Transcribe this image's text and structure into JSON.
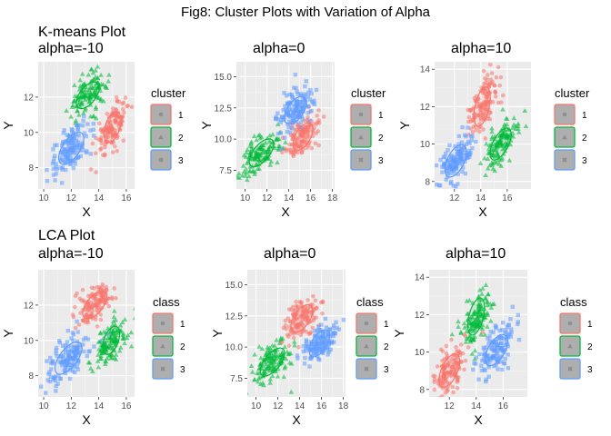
{
  "title": "Fig8: Cluster Plots with Variation of Alpha",
  "colors": {
    "red": "#F8766D",
    "green": "#00BA38",
    "blue": "#619CFF",
    "panel_bg": "#EBEBEB",
    "grid_major": "#FFFFFF"
  },
  "chart_data": [
    {
      "type": "scatter",
      "title": "K-means Plot\nalpha=-10",
      "xlabel": "X",
      "ylabel": "Y",
      "xlim": [
        9.6,
        16.6
      ],
      "ylim": [
        6.8,
        14.0
      ],
      "xticks": [
        10,
        12,
        14,
        16
      ],
      "yticks": [
        8,
        10,
        12
      ],
      "legend": {
        "title": "cluster",
        "entries": [
          "1",
          "2",
          "3"
        ],
        "position": "right"
      },
      "grid": true,
      "series": [
        {
          "name": "1",
          "shape": "circle",
          "color": "#F8766D",
          "center": [
            15.0,
            10.3
          ],
          "sd": [
            0.6,
            0.75
          ],
          "corr": 0.6,
          "ellipse_angle": 65,
          "ellipse_axes": [
            1.7,
            0.95
          ]
        },
        {
          "name": "2",
          "shape": "triangle",
          "color": "#00BA38",
          "center": [
            13.2,
            12.1
          ],
          "sd": [
            0.7,
            0.65
          ],
          "corr": 0.6,
          "ellipse_angle": 40,
          "ellipse_axes": [
            1.8,
            0.95
          ]
        },
        {
          "name": "3",
          "shape": "square",
          "color": "#619CFF",
          "center": [
            12.0,
            9.1
          ],
          "sd": [
            0.75,
            0.75
          ],
          "corr": 0.6,
          "ellipse_angle": 45,
          "ellipse_axes": [
            2.1,
            1.05
          ]
        }
      ]
    },
    {
      "type": "scatter",
      "title": "alpha=0",
      "xlabel": "X",
      "ylabel": "Y",
      "xlim": [
        9.2,
        18.2
      ],
      "ylim": [
        6.0,
        16.2
      ],
      "xticks": [
        10,
        12,
        14,
        16,
        18
      ],
      "yticks": [
        7.5,
        10.0,
        12.5,
        15.0
      ],
      "legend": {
        "title": "cluster",
        "entries": [
          "1",
          "2",
          "3"
        ],
        "position": "right"
      },
      "grid": true,
      "series": [
        {
          "name": "1",
          "shape": "circle",
          "color": "#F8766D",
          "center": [
            15.3,
            10.2
          ],
          "sd": [
            0.8,
            0.9
          ],
          "corr": 0.5,
          "ellipse_angle": 55,
          "ellipse_axes": [
            2.3,
            1.2
          ]
        },
        {
          "name": "2",
          "shape": "triangle",
          "color": "#00BA38",
          "center": [
            11.5,
            8.9
          ],
          "sd": [
            0.9,
            0.9
          ],
          "corr": 0.55,
          "ellipse_angle": 45,
          "ellipse_axes": [
            2.6,
            1.25
          ]
        },
        {
          "name": "3",
          "shape": "square",
          "color": "#619CFF",
          "center": [
            14.6,
            12.3
          ],
          "sd": [
            0.8,
            1.0
          ],
          "corr": 0.45,
          "ellipse_angle": 50,
          "ellipse_axes": [
            2.4,
            1.3
          ]
        }
      ]
    },
    {
      "type": "scatter",
      "title": "alpha=10",
      "xlabel": "X",
      "ylabel": "Y",
      "xlim": [
        10.5,
        17.8
      ],
      "ylim": [
        7.6,
        14.4
      ],
      "xticks": [
        12,
        14,
        16
      ],
      "yticks": [
        8,
        10,
        12,
        14
      ],
      "legend": {
        "title": "cluster",
        "entries": [
          "1",
          "2",
          "3"
        ],
        "position": "right"
      },
      "grid": true,
      "series": [
        {
          "name": "1",
          "shape": "circle",
          "color": "#F8766D",
          "center": [
            14.1,
            12.0
          ],
          "sd": [
            0.55,
            0.8
          ],
          "corr": 0.55,
          "ellipse_angle": 70,
          "ellipse_axes": [
            2.0,
            0.95
          ]
        },
        {
          "name": "2",
          "shape": "triangle",
          "color": "#00BA38",
          "center": [
            15.5,
            10.0
          ],
          "sd": [
            0.65,
            0.7
          ],
          "corr": 0.55,
          "ellipse_angle": 48,
          "ellipse_axes": [
            1.9,
            0.95
          ]
        },
        {
          "name": "3",
          "shape": "square",
          "color": "#619CFF",
          "center": [
            12.1,
            9.1
          ],
          "sd": [
            0.7,
            0.75
          ],
          "corr": 0.6,
          "ellipse_angle": 48,
          "ellipse_axes": [
            1.9,
            1.05
          ]
        }
      ]
    },
    {
      "type": "scatter",
      "title": "LCA Plot\nalpha=-10",
      "xlabel": "X",
      "ylabel": "Y",
      "xlim": [
        9.6,
        16.6
      ],
      "ylim": [
        6.8,
        14.0
      ],
      "xticks": [
        10,
        12,
        14,
        16
      ],
      "yticks": [
        8,
        10,
        12
      ],
      "legend": {
        "title": "class",
        "entries": [
          "1",
          "2",
          "3"
        ],
        "position": "right"
      },
      "grid": true,
      "series": [
        {
          "name": "1",
          "shape": "circle",
          "color": "#F8766D",
          "center": [
            13.7,
            12.0
          ],
          "sd": [
            0.7,
            0.65
          ],
          "corr": 0.6,
          "ellipse_angle": 40,
          "ellipse_axes": [
            1.9,
            0.95
          ]
        },
        {
          "name": "2",
          "shape": "triangle",
          "color": "#00BA38",
          "center": [
            14.9,
            10.0
          ],
          "sd": [
            0.6,
            0.75
          ],
          "corr": 0.6,
          "ellipse_angle": 60,
          "ellipse_axes": [
            1.6,
            0.9
          ]
        },
        {
          "name": "3",
          "shape": "square",
          "color": "#619CFF",
          "center": [
            11.8,
            9.0
          ],
          "sd": [
            0.8,
            0.75
          ],
          "corr": 0.6,
          "ellipse_angle": 42,
          "ellipse_axes": [
            2.2,
            1.05
          ]
        }
      ]
    },
    {
      "type": "scatter",
      "title": "alpha=0",
      "xlabel": "X",
      "ylabel": "Y",
      "xlim": [
        9.2,
        18.2
      ],
      "ylim": [
        6.0,
        16.2
      ],
      "xticks": [
        10,
        12,
        14,
        16,
        18
      ],
      "yticks": [
        7.5,
        10.0,
        12.5,
        15.0
      ],
      "legend": {
        "title": "class",
        "entries": [
          "1",
          "2",
          "3"
        ],
        "position": "right"
      },
      "grid": true,
      "series": [
        {
          "name": "1",
          "shape": "circle",
          "color": "#F8766D",
          "center": [
            14.2,
            12.3
          ],
          "sd": [
            0.85,
            0.95
          ],
          "corr": 0.5,
          "ellipse_angle": 50,
          "ellipse_axes": [
            2.4,
            1.25
          ]
        },
        {
          "name": "2",
          "shape": "triangle",
          "color": "#00BA38",
          "center": [
            11.5,
            8.8
          ],
          "sd": [
            0.9,
            0.9
          ],
          "corr": 0.55,
          "ellipse_angle": 45,
          "ellipse_axes": [
            2.6,
            1.25
          ]
        },
        {
          "name": "3",
          "shape": "square",
          "color": "#619CFF",
          "center": [
            15.8,
            10.3
          ],
          "sd": [
            0.85,
            0.85
          ],
          "corr": 0.5,
          "ellipse_angle": 52,
          "ellipse_axes": [
            2.3,
            1.2
          ]
        }
      ]
    },
    {
      "type": "scatter",
      "title": "alpha=10",
      "xlabel": "X",
      "ylabel": "Y",
      "xlim": [
        10.5,
        17.8
      ],
      "ylim": [
        7.6,
        14.4
      ],
      "xticks": [
        12,
        14,
        16
      ],
      "yticks": [
        8,
        10,
        12,
        14
      ],
      "legend": {
        "title": "class",
        "entries": [
          "1",
          "2",
          "3"
        ],
        "position": "right"
      },
      "grid": true,
      "series": [
        {
          "name": "1",
          "shape": "circle",
          "color": "#F8766D",
          "center": [
            12.0,
            9.0
          ],
          "sd": [
            0.65,
            0.75
          ],
          "corr": 0.6,
          "ellipse_angle": 52,
          "ellipse_axes": [
            1.9,
            1.0
          ]
        },
        {
          "name": "2",
          "shape": "triangle",
          "color": "#00BA38",
          "center": [
            14.0,
            11.9
          ],
          "sd": [
            0.55,
            0.75
          ],
          "corr": 0.55,
          "ellipse_angle": 68,
          "ellipse_axes": [
            1.9,
            0.95
          ]
        },
        {
          "name": "3",
          "shape": "square",
          "color": "#619CFF",
          "center": [
            15.5,
            10.1
          ],
          "sd": [
            0.7,
            0.7
          ],
          "corr": 0.55,
          "ellipse_angle": 45,
          "ellipse_axes": [
            1.9,
            1.0
          ]
        }
      ]
    }
  ]
}
